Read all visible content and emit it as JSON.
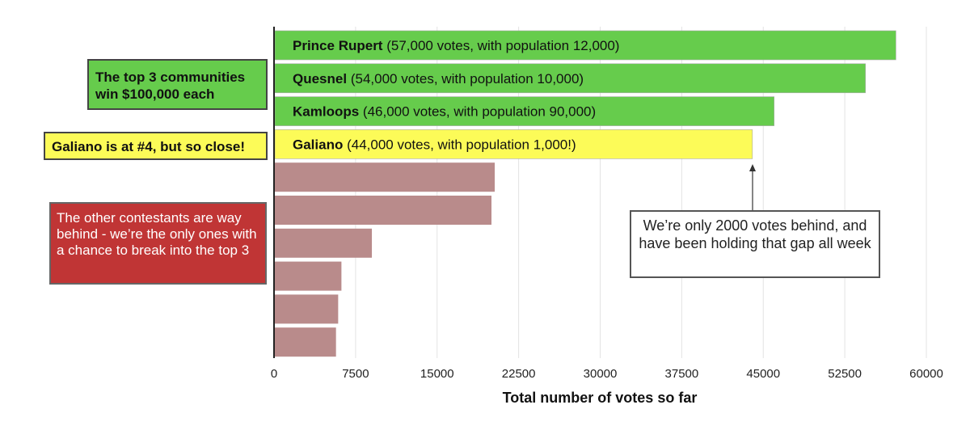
{
  "chart_data": {
    "type": "bar",
    "orientation": "horizontal",
    "categories": [
      "Prince Rupert",
      "Quesnel",
      "Kamloops",
      "Galiano",
      "",
      "",
      "",
      "",
      "",
      ""
    ],
    "bar_details": [
      "(57,000 votes, with population 12,000)",
      "(54,000 votes, with population 10,000)",
      "(46,000 votes, with population 90,000)",
      "(44,000 votes, with population 1,000!)"
    ],
    "values": [
      57200,
      54400,
      46000,
      44000,
      20300,
      20000,
      9000,
      6200,
      5900,
      5700
    ],
    "xlabel": "Total number of votes so far",
    "xlim": [
      0,
      60000
    ],
    "ticks": [
      "0",
      "7500",
      "15000",
      "22500",
      "30000",
      "37500",
      "45000",
      "52500",
      "60000"
    ],
    "tick_values": [
      0,
      7500,
      15000,
      22500,
      30000,
      37500,
      45000,
      52500,
      60000
    ],
    "grid": true,
    "colors": {
      "top3": "#66cc4c",
      "galiano": "#fcfb58",
      "others": "#b98b8b",
      "bar_border": "#aaaaaa",
      "grid": "#e3e3e3",
      "axis": "#222222"
    }
  },
  "annotations": {
    "top3": "The top 3 communities win $100,000 each",
    "galiano": "Galiano is at #4, but so close!",
    "others": "The other contestants are way behind - we’re the only ones with a chance to break into the top 3",
    "gap": "We’re only 2000 votes behind, and have been holding that gap all week"
  }
}
